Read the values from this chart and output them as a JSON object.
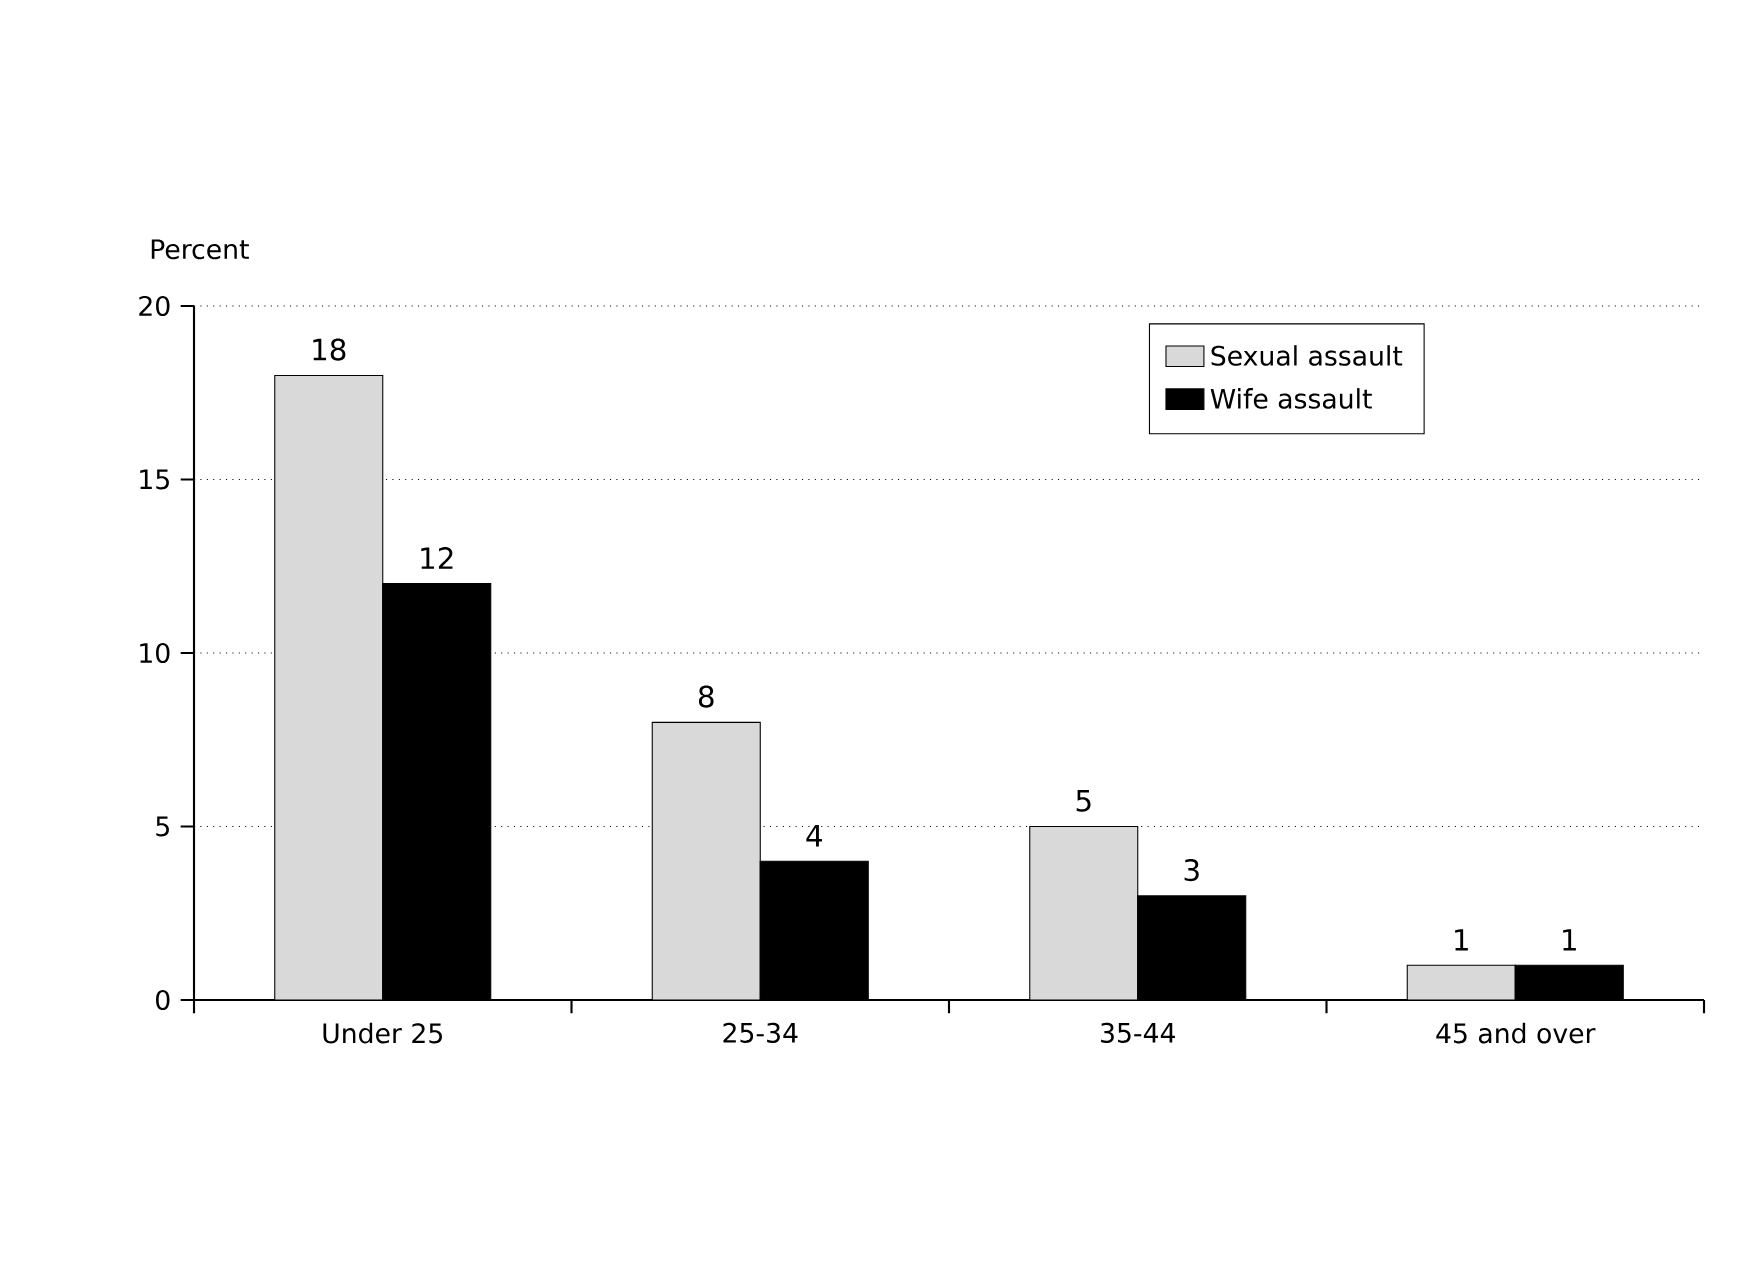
{
  "chart_data": {
    "type": "bar",
    "ylabel": "Percent",
    "categories": [
      "Under 25",
      "25-34",
      "35-44",
      "45 and over"
    ],
    "series": [
      {
        "name": "Sexual assault",
        "color": "#d9d9d9",
        "values": [
          18,
          8,
          5,
          1
        ]
      },
      {
        "name": "Wife assault",
        "color": "#000000",
        "values": [
          12,
          4,
          3,
          1
        ]
      }
    ],
    "ylim": [
      0,
      20
    ],
    "yticks": [
      0,
      5,
      10,
      15,
      20
    ],
    "grid": "y",
    "legend": "top right",
    "data_labels": true
  }
}
